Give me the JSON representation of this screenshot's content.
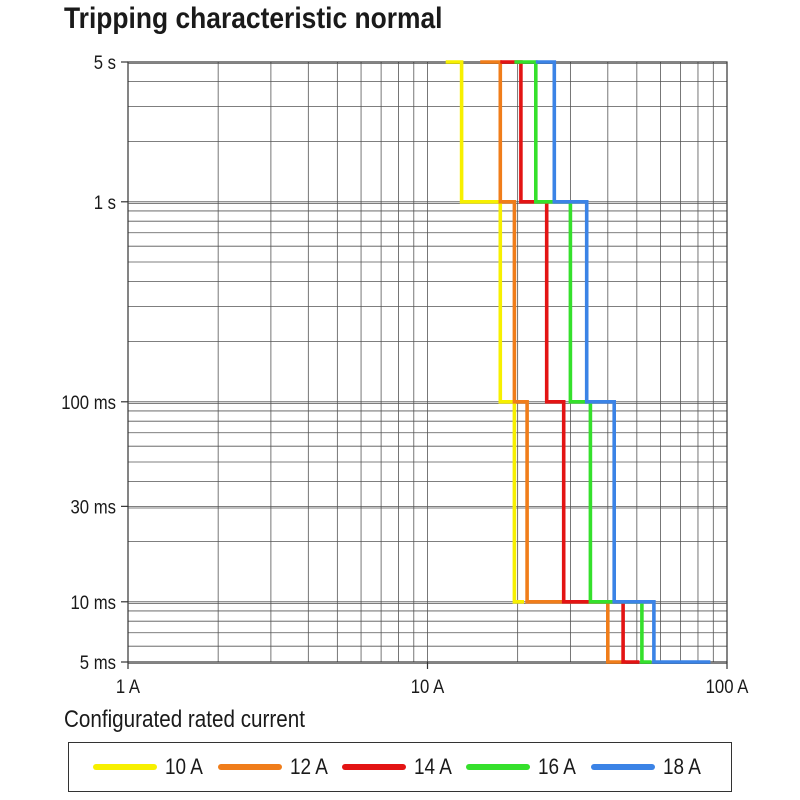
{
  "chart_data": {
    "type": "line",
    "title": "Tripping characteristic normal",
    "xlabel": "",
    "ylabel": "",
    "x_scale": "log",
    "y_scale": "log",
    "xlim": [
      1,
      100
    ],
    "ylim": [
      0.005,
      5
    ],
    "grid": true,
    "x_ticks": [
      {
        "value": 1,
        "label": "1 A"
      },
      {
        "value": 10,
        "label": "10 A"
      },
      {
        "value": 100,
        "label": "100 A"
      }
    ],
    "y_ticks": [
      {
        "value": 5,
        "label": "5 s"
      },
      {
        "value": 1,
        "label": "1 s"
      },
      {
        "value": 0.1,
        "label": "100 ms"
      },
      {
        "value": 0.03,
        "label": "30 ms"
      },
      {
        "value": 0.01,
        "label": "10 ms"
      },
      {
        "value": 0.005,
        "label": "5 ms"
      }
    ],
    "legend_title": "Configurated rated current",
    "legend_position": "bottom",
    "series": [
      {
        "name": "10 A",
        "color": "#f7f000",
        "points": [
          [
            11.5,
            5
          ],
          [
            13,
            5
          ],
          [
            13,
            1
          ],
          [
            17.5,
            1
          ],
          [
            17.5,
            0.1
          ],
          [
            19.5,
            0.1
          ],
          [
            19.5,
            0.01
          ],
          [
            21,
            0.01
          ]
        ]
      },
      {
        "name": "12 A",
        "color": "#f07d1a",
        "points": [
          [
            15,
            5
          ],
          [
            17.5,
            5
          ],
          [
            17.5,
            1
          ],
          [
            19.5,
            1
          ],
          [
            19.5,
            0.1
          ],
          [
            21.5,
            0.1
          ],
          [
            21.5,
            0.01
          ],
          [
            40,
            0.01
          ],
          [
            40,
            0.005
          ],
          [
            46,
            0.005
          ]
        ]
      },
      {
        "name": "14 A",
        "color": "#e31414",
        "points": [
          [
            17.5,
            5
          ],
          [
            20.5,
            5
          ],
          [
            20.5,
            1
          ],
          [
            25,
            1
          ],
          [
            25,
            0.1
          ],
          [
            28.5,
            0.1
          ],
          [
            28.5,
            0.01
          ],
          [
            45,
            0.01
          ],
          [
            45,
            0.005
          ],
          [
            51,
            0.005
          ]
        ]
      },
      {
        "name": "16 A",
        "color": "#35e02c",
        "points": [
          [
            19.5,
            5
          ],
          [
            23,
            5
          ],
          [
            23,
            1
          ],
          [
            30,
            1
          ],
          [
            30,
            0.1
          ],
          [
            35,
            0.1
          ],
          [
            35,
            0.01
          ],
          [
            52,
            0.01
          ],
          [
            52,
            0.005
          ],
          [
            56,
            0.005
          ]
        ]
      },
      {
        "name": "18 A",
        "color": "#3b83e6",
        "points": [
          [
            23,
            5
          ],
          [
            26.5,
            5
          ],
          [
            26.5,
            1
          ],
          [
            34,
            1
          ],
          [
            34,
            0.1
          ],
          [
            42,
            0.1
          ],
          [
            42,
            0.01
          ],
          [
            57,
            0.01
          ],
          [
            57,
            0.005
          ],
          [
            88,
            0.005
          ]
        ]
      }
    ]
  }
}
